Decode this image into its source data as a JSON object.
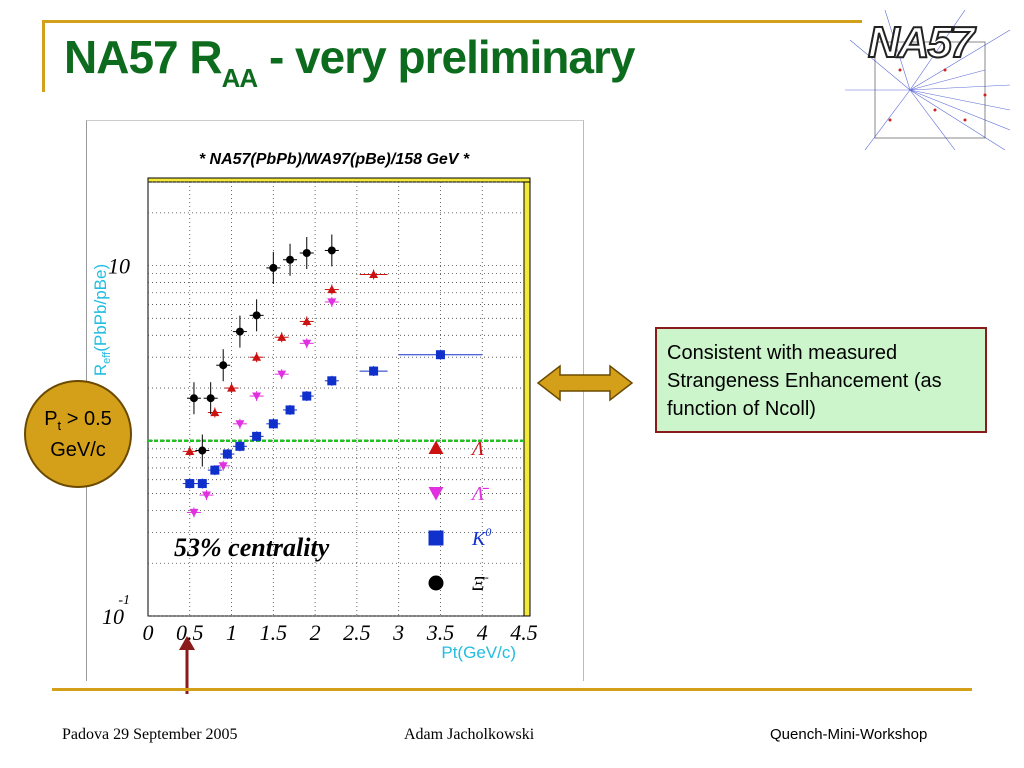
{
  "slide": {
    "title_main": "NA57 R",
    "title_sub": "AA",
    "title_rest": " - very preliminary",
    "logo_text": "NA57"
  },
  "badge": {
    "line1_prefix": "P",
    "line1_sub": "t",
    "line1_suffix": " > 0.5",
    "line2": "GeV/c"
  },
  "callout": {
    "text": "Consistent with measured Strangeness Enhancement (as function of Ncoll)"
  },
  "footer": {
    "left": "Padova 29 September 2005",
    "center": "Adam Jacholkowski",
    "right": "Quench-Mini-Workshop"
  },
  "colors": {
    "title": "#0d6b1e",
    "accent": "#d4a019",
    "callout_bg": "#ccf5cc",
    "callout_border": "#8b1a1a",
    "arrow_fill": "#d4a019"
  },
  "chart_data": {
    "type": "scatter",
    "title": "* NA57(PbPb)/WA97(pBe)/158 GeV *",
    "xlabel": "Pt(GeV/c)",
    "ylabel": "R",
    "ylabel_sub": "eff",
    "ylabel_rest": "(PbPb/pBe)",
    "xlim": [
      0,
      4.5
    ],
    "ylim": [
      0.1,
      30
    ],
    "y_scale": "log",
    "x_ticks": [
      "0",
      "0.5",
      "1",
      "1.5",
      "2",
      "2.5",
      "3",
      "3.5",
      "4",
      "4.5"
    ],
    "y_tick_10": "10",
    "y_tick_01_base": "10",
    "y_tick_01_exp": "-1",
    "annotation": "53% centrality",
    "reference_line_y": 1,
    "grid": true,
    "series": [
      {
        "name": "Λ",
        "marker": "triangle-up",
        "color": "#cc1111",
        "x": [
          0.5,
          0.8,
          1.0,
          1.3,
          1.6,
          1.9,
          2.2,
          2.7
        ],
        "y": [
          0.87,
          1.45,
          2.0,
          3.0,
          3.9,
          4.8,
          7.3,
          8.9
        ]
      },
      {
        "name": "Λ̄",
        "marker": "triangle-down",
        "color": "#e030e0",
        "x": [
          0.55,
          0.7,
          0.9,
          1.1,
          1.3,
          1.6,
          1.9,
          2.2
        ],
        "y": [
          0.39,
          0.49,
          0.72,
          1.25,
          1.8,
          2.4,
          3.6,
          6.2
        ]
      },
      {
        "name": "K",
        "name_sup": "0",
        "marker": "square",
        "color": "#1030cc",
        "x": [
          0.5,
          0.65,
          0.8,
          0.95,
          1.1,
          1.3,
          1.5,
          1.7,
          1.9,
          2.2,
          2.7,
          3.5
        ],
        "y": [
          0.57,
          0.57,
          0.68,
          0.84,
          0.93,
          1.06,
          1.25,
          1.5,
          1.8,
          2.2,
          2.5,
          3.1
        ]
      },
      {
        "name": "Ξ",
        "name_sup": "-",
        "marker": "circle",
        "color": "#000000",
        "x": [
          0.55,
          0.65,
          0.75,
          0.9,
          1.1,
          1.3,
          1.5,
          1.7,
          1.9,
          2.2
        ],
        "y": [
          1.75,
          0.88,
          1.75,
          2.7,
          4.2,
          5.2,
          9.7,
          10.8,
          11.8,
          12.2
        ]
      }
    ]
  }
}
